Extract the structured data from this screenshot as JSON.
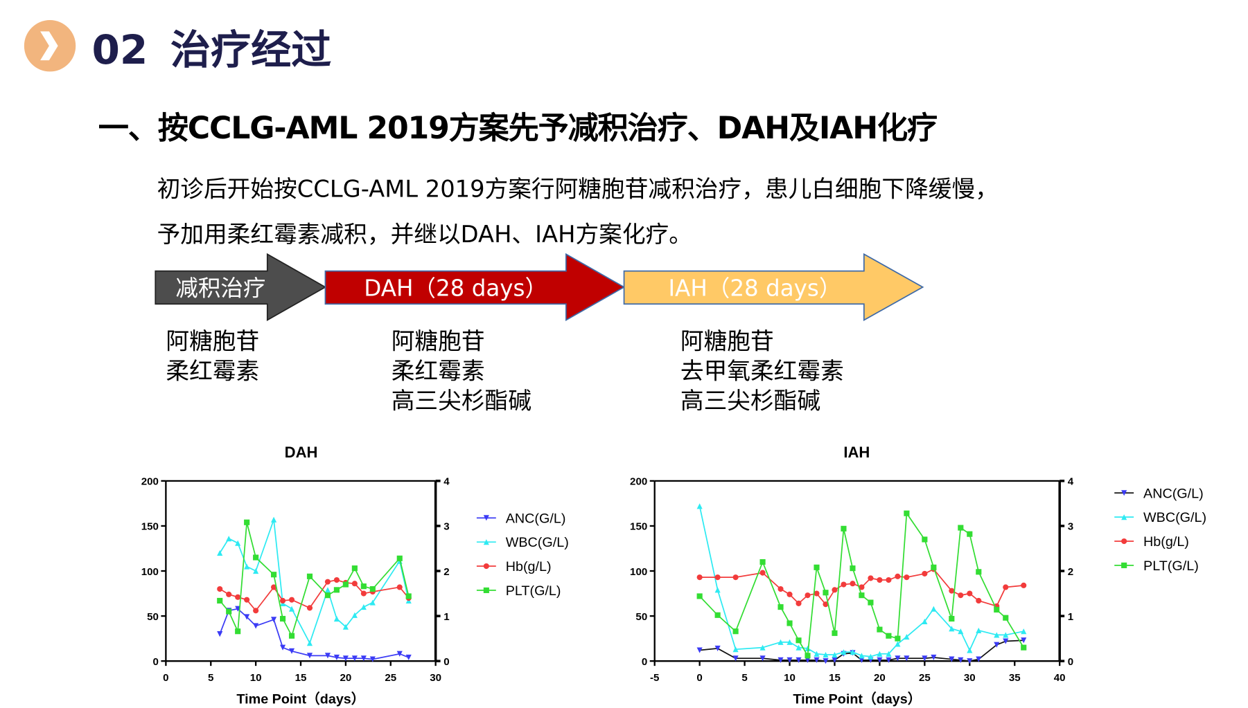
{
  "header": {
    "number": "02",
    "title": "治疗经过",
    "badge_color": "#F2B57E",
    "title_color": "#1E1E4C"
  },
  "subtitle": "一、按CCLG-AML 2019方案先予减积治疗、DAH及IAH化疗",
  "paragraph": [
    "初诊后开始按CCLG-AML 2019方案行阿糖胞苷减积治疗，患儿白细胞下降缓慢，",
    "予加用柔红霉素减积，并继以DAH、IAH方案化疗。"
  ],
  "phases": [
    {
      "label": "减积治疗",
      "color": "#4D4D4D",
      "drugs": [
        "阿糖胞苷",
        "柔红霉素"
      ]
    },
    {
      "label": "DAH（28 days）",
      "color": "#C00000",
      "drugs": [
        "阿糖胞苷",
        "柔红霉素",
        "高三尖杉酯碱"
      ]
    },
    {
      "label": "IAH（28 days）",
      "color": "#FFC966",
      "drugs": [
        "阿糖胞苷",
        "去甲氧柔红霉素",
        "高三尖杉酯碱"
      ]
    }
  ],
  "chart_data": [
    {
      "type": "line",
      "title": "DAH",
      "xlabel": "Time Point（days）",
      "xlim": [
        0,
        30
      ],
      "xticks": [
        0,
        5,
        10,
        15,
        20,
        25,
        30
      ],
      "ylim_left": [
        0,
        200
      ],
      "yticks_left": [
        0,
        50,
        100,
        150,
        200
      ],
      "ylim_right": [
        0,
        4
      ],
      "yticks_right": [
        0,
        1,
        2,
        3,
        4
      ],
      "legend_position": "right",
      "series": [
        {
          "name": "ANC(G/L)",
          "axis": "left",
          "color": "#3B3BF5",
          "line_color": "#3B3BF5",
          "marker": "triangle-down",
          "x": [
            6,
            7,
            8,
            9,
            10,
            12,
            13,
            14,
            16,
            18,
            19,
            20,
            21,
            22,
            23,
            26,
            27
          ],
          "y": [
            30,
            56,
            58,
            49,
            39,
            46,
            15,
            11,
            6,
            6,
            4,
            3,
            3,
            3,
            2,
            8,
            4
          ]
        },
        {
          "name": "WBC(G/L)",
          "axis": "left",
          "color": "#2EEAF2",
          "line_color": "#2EEAF2",
          "marker": "triangle-up",
          "x": [
            6,
            7,
            8,
            9,
            10,
            12,
            13,
            14,
            16,
            18,
            19,
            20,
            21,
            22,
            23,
            26,
            27
          ],
          "y": [
            120,
            136,
            131,
            105,
            100,
            157,
            64,
            58,
            20,
            79,
            47,
            38,
            51,
            60,
            65,
            111,
            67
          ]
        },
        {
          "name": "Hb(g/L)",
          "axis": "left",
          "color": "#F23B3B",
          "line_color": "#F23B3B",
          "marker": "circle",
          "x": [
            6,
            7,
            8,
            9,
            10,
            12,
            13,
            14,
            16,
            18,
            19,
            20,
            21,
            22,
            23,
            26,
            27
          ],
          "y": [
            80,
            74,
            71,
            68,
            56,
            82,
            67,
            68,
            59,
            88,
            90,
            87,
            86,
            75,
            77,
            82,
            70
          ]
        },
        {
          "name": "PLT(G/L)",
          "axis": "right",
          "color": "#33DD33",
          "line_color": "#33DD33",
          "marker": "square",
          "x": [
            6,
            7,
            8,
            9,
            10,
            12,
            13,
            14,
            16,
            18,
            19,
            20,
            21,
            22,
            23,
            26,
            27
          ],
          "y": [
            1.34,
            1.1,
            0.66,
            3.08,
            2.3,
            1.92,
            0.94,
            0.56,
            1.88,
            1.46,
            1.58,
            1.7,
            2.06,
            1.66,
            1.6,
            2.28,
            1.44
          ]
        }
      ]
    },
    {
      "type": "line",
      "title": "IAH",
      "xlabel": "Time Point（days）",
      "xlim": [
        -5,
        40
      ],
      "xticks": [
        -5,
        0,
        5,
        10,
        15,
        20,
        25,
        30,
        35,
        40
      ],
      "ylim_left": [
        0,
        200
      ],
      "yticks_left": [
        0,
        50,
        100,
        150,
        200
      ],
      "ylim_right": [
        0,
        4
      ],
      "yticks_right": [
        0,
        1,
        2,
        3,
        4
      ],
      "legend_position": "right",
      "series": [
        {
          "name": "ANC(G/L)",
          "axis": "left",
          "color": "#3B3BF5",
          "line_color": "#111111",
          "marker": "triangle-down",
          "x": [
            0,
            2,
            4,
            7,
            9,
            10,
            11,
            12,
            13,
            14,
            15,
            16,
            17,
            18,
            19,
            20,
            21,
            22,
            23,
            25,
            26,
            28,
            29,
            30,
            31,
            33,
            34,
            36
          ],
          "y": [
            12,
            14,
            3,
            3,
            1,
            1,
            1,
            1,
            1,
            0,
            1,
            8,
            9,
            1,
            1,
            1,
            1,
            3,
            3,
            3,
            4,
            2,
            1,
            0,
            2,
            18,
            22,
            23
          ]
        },
        {
          "name": "WBC(G/L)",
          "axis": "left",
          "color": "#2EEAF2",
          "line_color": "#2EEAF2",
          "marker": "triangle-up",
          "x": [
            0,
            2,
            4,
            7,
            9,
            10,
            11,
            12,
            13,
            14,
            15,
            16,
            17,
            18,
            19,
            20,
            21,
            22,
            23,
            25,
            26,
            28,
            29,
            30,
            31,
            33,
            34,
            36
          ],
          "y": [
            172,
            79,
            13,
            15,
            21,
            21,
            15,
            14,
            8,
            7,
            7,
            10,
            10,
            6,
            5,
            8,
            8,
            19,
            27,
            44,
            58,
            36,
            33,
            12,
            34,
            29,
            29,
            33
          ]
        },
        {
          "name": "Hb(g/L)",
          "axis": "left",
          "color": "#F23B3B",
          "line_color": "#F23B3B",
          "marker": "circle",
          "x": [
            0,
            2,
            4,
            7,
            9,
            10,
            11,
            12,
            13,
            14,
            15,
            16,
            17,
            18,
            19,
            20,
            21,
            22,
            23,
            25,
            26,
            28,
            29,
            30,
            31,
            33,
            34,
            36
          ],
          "y": [
            93,
            93,
            93,
            98,
            80,
            74,
            64,
            73,
            75,
            63,
            79,
            85,
            86,
            82,
            92,
            90,
            90,
            94,
            93,
            97,
            102,
            78,
            73,
            75,
            67,
            61,
            82,
            84
          ]
        },
        {
          "name": "PLT(G/L)",
          "axis": "right",
          "color": "#33DD33",
          "line_color": "#33DD33",
          "marker": "square",
          "x": [
            0,
            2,
            4,
            7,
            9,
            10,
            11,
            12,
            13,
            14,
            15,
            16,
            17,
            18,
            19,
            20,
            21,
            22,
            23,
            25,
            26,
            28,
            29,
            30,
            31,
            33,
            34,
            36
          ],
          "y": [
            1.44,
            1.02,
            0.66,
            2.2,
            1.2,
            0.84,
            0.46,
            0.12,
            2.08,
            1.52,
            0.62,
            2.94,
            2.06,
            1.46,
            1.3,
            0.7,
            0.56,
            0.5,
            3.28,
            2.7,
            2.08,
            0.94,
            2.96,
            2.82,
            1.98,
            1.14,
            0.96,
            0.3
          ]
        }
      ]
    }
  ]
}
